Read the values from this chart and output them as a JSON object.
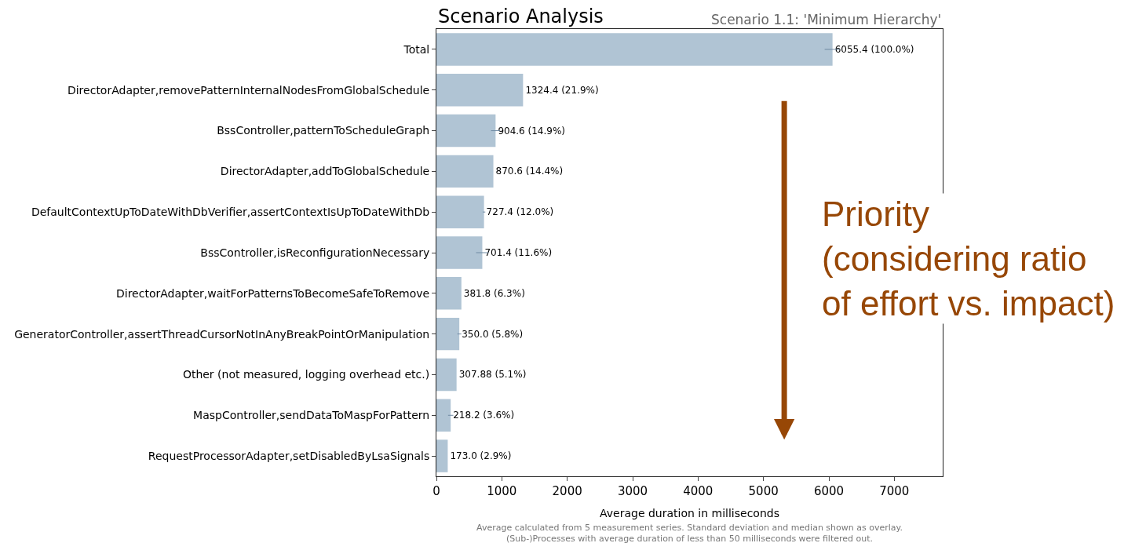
{
  "chart_data": {
    "type": "bar",
    "orientation": "horizontal",
    "title": "Scenario Analysis",
    "subtitle": "Scenario 1.1: 'Minimum Hierarchy'",
    "xlabel": "Average duration in milliseconds",
    "categories": [
      "Total",
      "DirectorAdapter,removePatternInternalNodesFromGlobalSchedule",
      "BssController,patternToScheduleGraph",
      "DirectorAdapter,addToGlobalSchedule",
      "DefaultContextUpToDateWithDbVerifier,assertContextIsUpToDateWithDb",
      "BssController,isReconfigurationNecessary",
      "DirectorAdapter,waitForPatternsToBecomeSafeToRemove",
      "GeneratorController,assertThreadCursorNotInAnyBreakPointOrManipulation",
      "Other (not measured, logging overhead etc.)",
      "MaspController,sendDataToMaspForPattern",
      "RequestProcessorAdapter,setDisabledByLsaSignals"
    ],
    "values": [
      6055.4,
      1324.4,
      904.6,
      870.6,
      727.4,
      701.4,
      381.8,
      350.0,
      307.88,
      218.2,
      173.0
    ],
    "errors": [
      120,
      null,
      70,
      null,
      20,
      95,
      null,
      30,
      null,
      40,
      null
    ],
    "value_labels": [
      "6055.4 (100.0%)",
      "1324.4 (21.9%)",
      "904.6 (14.9%)",
      "870.6 (14.4%)",
      "727.4 (12.0%)",
      "701.4 (11.6%)",
      "381.8 (6.3%)",
      "350.0 (5.8%)",
      "307.88 (5.1%)",
      "218.2 (3.6%)",
      "173.0 (2.9%)"
    ],
    "color": "#b0c4d4",
    "xlim": [
      0,
      7740
    ],
    "xticks": [
      0,
      1000,
      2000,
      3000,
      4000,
      5000,
      6000,
      7000
    ],
    "annotations": [
      "Priority\n(considering ratio\nof effort vs. impact)",
      "Average calculated from 5 measurement series. Standard deviation and median shown as overlay.\n(Sub-)Processes with average duration of less than 50 milliseconds were filtered out."
    ]
  }
}
